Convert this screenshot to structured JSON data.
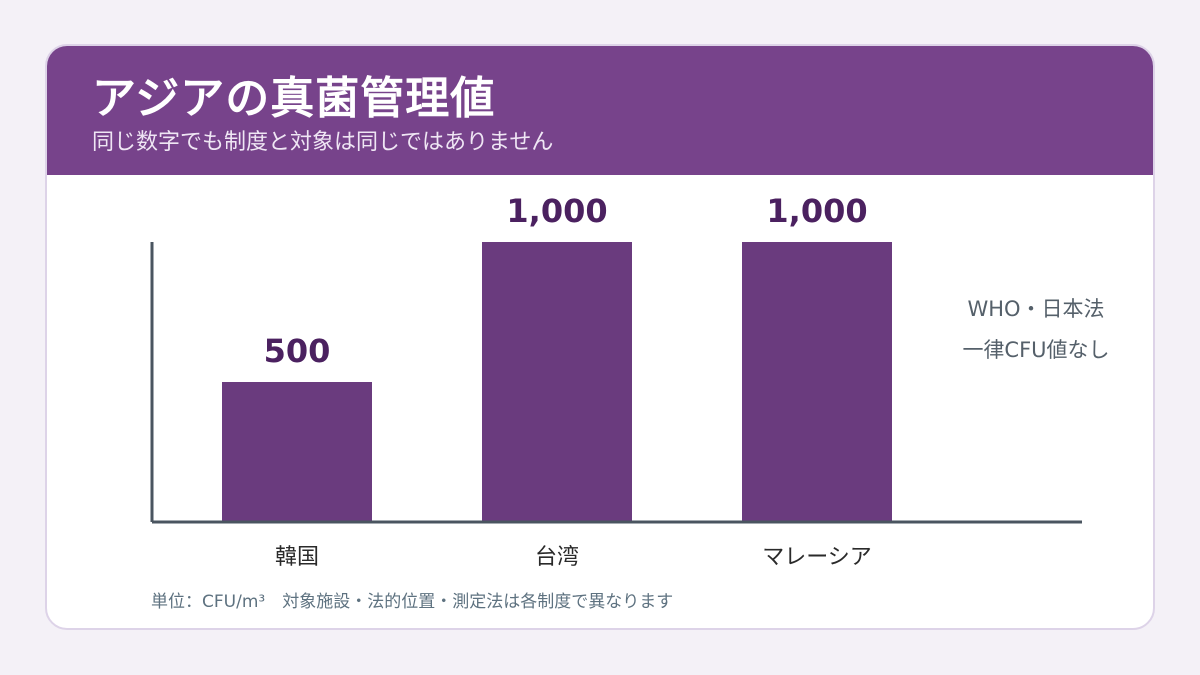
{
  "header": {
    "title": "アジアの真菌管理値",
    "subtitle": "同じ数字でも制度と対象は同じではありません"
  },
  "note": {
    "line1": "WHO・日本法",
    "line2": "一律CFU値なし"
  },
  "footnote": "単位：CFU/m³　対象施設・法的位置・測定法は各制度で異なります",
  "colors": {
    "header_bg": "#77438b",
    "bar": "#6a3b7e",
    "value_text": "#4b2160",
    "axis": "#4a5560"
  },
  "chart_data": {
    "type": "bar",
    "categories": [
      "韓国",
      "台湾",
      "マレーシア"
    ],
    "values": [
      500,
      1000,
      1000
    ],
    "value_labels": [
      "500",
      "1,000",
      "1,000"
    ],
    "ylim": [
      0,
      1000
    ],
    "grid": false,
    "legend": "none"
  }
}
